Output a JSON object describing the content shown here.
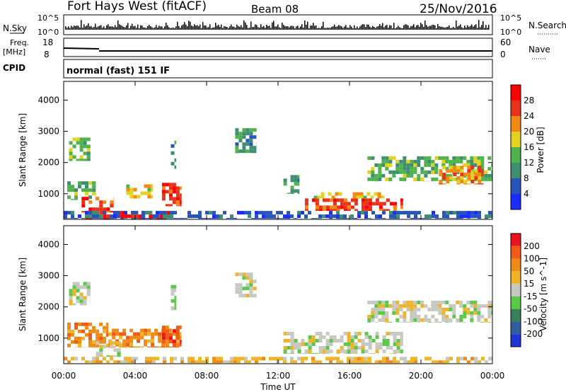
{
  "header": {
    "title": "Fort Hays West (fitACF)",
    "beam": "Beam 08",
    "date": "25/Nov/2016"
  },
  "top_panels": {
    "nsky_label": "N.Sky",
    "nsky_ticks": [
      "10^5",
      "10^0"
    ],
    "nsearch_label": "N.Search",
    "nsearch_ticks": [
      "10^5",
      "10^0"
    ],
    "freq_label": "Freq.",
    "freq_unit": "[MHz]",
    "freq_ticks": [
      "18",
      "8"
    ],
    "nave_label": "Nave",
    "nave_ticks": [
      "60",
      "0"
    ],
    "cpid_label": "CPID",
    "cpid_value": "normal (fast) 151 IF"
  },
  "x_axis": {
    "label": "Time UT",
    "ticks": [
      "00:00",
      "04:00",
      "08:00",
      "12:00",
      "16:00",
      "20:00",
      "00:00"
    ]
  },
  "chart_data": [
    {
      "type": "heatmap",
      "name": "power",
      "ylabel": "Slant Range [km]",
      "xlabel": "",
      "x_range_hours": [
        0,
        24
      ],
      "ylim": [
        180,
        4600
      ],
      "y_ticks": [
        1000,
        2000,
        3000,
        4000
      ],
      "colorbar": {
        "label": "Power [dB]",
        "ticks": [
          "4",
          "8",
          "12",
          "16",
          "20",
          "24",
          "28"
        ],
        "colors": [
          "#1a2cff",
          "#2756b8",
          "#3e8f70",
          "#4fb24a",
          "#e3d21e",
          "#f08a14",
          "#e8321a",
          "#ff0000"
        ]
      },
      "regions": [
        {
          "t": [
            0.2,
            1.8
          ],
          "r": [
            800,
            1400
          ],
          "level": 3
        },
        {
          "t": [
            0.3,
            1.5
          ],
          "r": [
            2050,
            2800
          ],
          "level": 3
        },
        {
          "t": [
            1.0,
            2.8
          ],
          "r": [
            400,
            900
          ],
          "level": 6
        },
        {
          "t": [
            1.2,
            6.0
          ],
          "r": [
            180,
            450
          ],
          "level": 7
        },
        {
          "t": [
            3.5,
            5.0
          ],
          "r": [
            850,
            1300
          ],
          "level": 4
        },
        {
          "t": [
            5.5,
            6.6
          ],
          "r": [
            600,
            1350
          ],
          "level": 6
        },
        {
          "t": [
            6.0,
            6.3
          ],
          "r": [
            1800,
            2700
          ],
          "level": 2
        },
        {
          "t": [
            9.6,
            10.8
          ],
          "r": [
            2300,
            3100
          ],
          "level": 2
        },
        {
          "t": [
            12.3,
            13.2
          ],
          "r": [
            1000,
            1600
          ],
          "level": 2
        },
        {
          "t": [
            13.5,
            19.0
          ],
          "r": [
            450,
            850
          ],
          "level": 6
        },
        {
          "t": [
            14.0,
            18.0
          ],
          "r": [
            850,
            1050
          ],
          "level": 4
        },
        {
          "t": [
            17.0,
            24.0
          ],
          "r": [
            1400,
            2200
          ],
          "level": 3
        },
        {
          "t": [
            21.0,
            23.5
          ],
          "r": [
            1300,
            1900
          ],
          "level": 5
        },
        {
          "t": [
            0.0,
            24.0
          ],
          "r": [
            200,
            450
          ],
          "level": 1
        }
      ]
    },
    {
      "type": "heatmap",
      "name": "velocity",
      "ylabel": "Slant Range [km]",
      "xlabel": "Time UT",
      "x_range_hours": [
        0,
        24
      ],
      "ylim": [
        180,
        4600
      ],
      "y_ticks": [
        1000,
        2000,
        3000,
        4000
      ],
      "colorbar": {
        "label": "Velocity [m s^-1]",
        "ticks": [
          "200",
          "100",
          "50",
          "15",
          "-15",
          "-50",
          "-100",
          "-200"
        ],
        "colors": [
          "#2035d8",
          "#2f5fa0",
          "#38805a",
          "#5bc84a",
          "#c8c8c2",
          "#f0b428",
          "#f08a14",
          "#f05a14",
          "#e8141e"
        ]
      },
      "regions": [
        {
          "t": [
            0.2,
            2.5
          ],
          "r": [
            700,
            1500
          ],
          "level": 6
        },
        {
          "t": [
            2.5,
            6.6
          ],
          "r": [
            700,
            1300
          ],
          "level": 6
        },
        {
          "t": [
            5.5,
            6.6
          ],
          "r": [
            700,
            1400
          ],
          "level": 7
        },
        {
          "t": [
            0.3,
            1.5
          ],
          "r": [
            2050,
            2800
          ],
          "level": 4
        },
        {
          "t": [
            1.8,
            3.2
          ],
          "r": [
            400,
            900
          ],
          "level": 4
        },
        {
          "t": [
            6.0,
            6.3
          ],
          "r": [
            1900,
            2700
          ],
          "level": 3
        },
        {
          "t": [
            9.6,
            10.8
          ],
          "r": [
            2300,
            3100
          ],
          "level": 4
        },
        {
          "t": [
            12.3,
            19.0
          ],
          "r": [
            500,
            1200
          ],
          "level": 4
        },
        {
          "t": [
            17.0,
            24.0
          ],
          "r": [
            1500,
            2200
          ],
          "level": 4
        },
        {
          "t": [
            0.0,
            24.0
          ],
          "r": [
            200,
            400
          ],
          "level": 5
        }
      ]
    }
  ]
}
